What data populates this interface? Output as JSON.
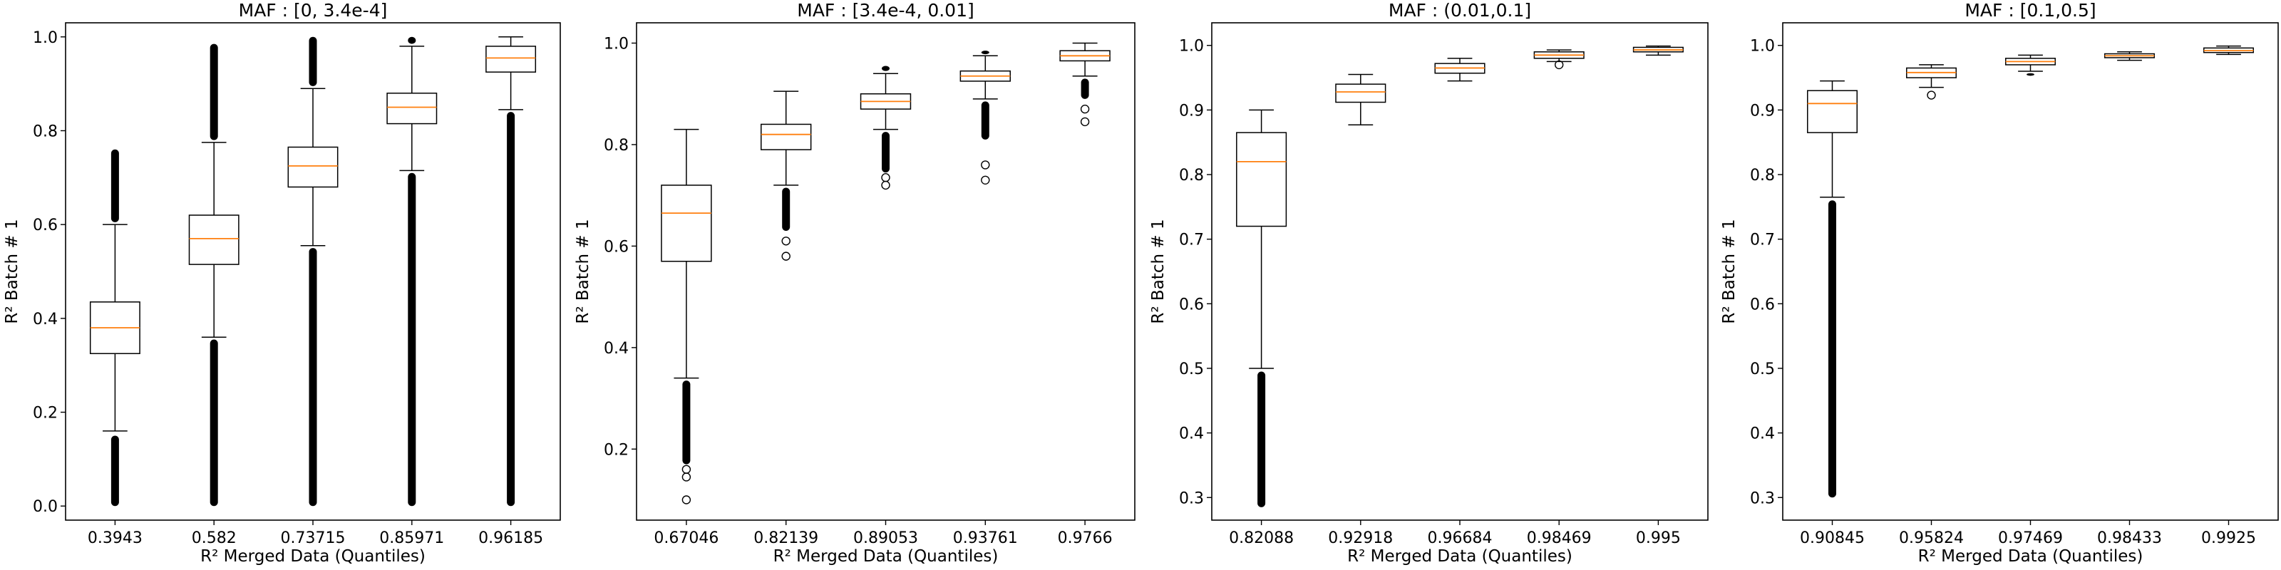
{
  "chart_data": [
    {
      "type": "box",
      "title": "MAF : [0, 3.4e-4]",
      "xlabel": "R² Merged Data (Quantiles)",
      "ylabel": "R² Batch # 1",
      "ylim": [
        -0.03,
        1.03
      ],
      "yticks": [
        0.0,
        0.2,
        0.4,
        0.6,
        0.8,
        1.0
      ],
      "ytick_labels": [
        "0.0",
        "0.2",
        "0.4",
        "0.6",
        "0.8",
        "1.0"
      ],
      "categories": [
        "0.3943",
        "0.582",
        "0.73715",
        "0.85971",
        "0.96185"
      ],
      "boxes": [
        {
          "whislo": 0.16,
          "q1": 0.325,
          "med": 0.38,
          "q3": 0.435,
          "whishi": 0.6,
          "fliers_low": [
            0.0,
            0.15
          ],
          "fliers_high": [
            0.605,
            0.76
          ]
        },
        {
          "whislo": 0.36,
          "q1": 0.515,
          "med": 0.57,
          "q3": 0.62,
          "whishi": 0.775,
          "fliers_low": [
            0.0,
            0.355
          ],
          "fliers_high": [
            0.78,
            0.985
          ]
        },
        {
          "whislo": 0.555,
          "q1": 0.68,
          "med": 0.725,
          "q3": 0.765,
          "whishi": 0.89,
          "fliers_low": [
            0.0,
            0.55
          ],
          "fliers_high": [
            0.895,
            1.0
          ]
        },
        {
          "whislo": 0.715,
          "q1": 0.815,
          "med": 0.85,
          "q3": 0.88,
          "whishi": 0.98,
          "fliers_low": [
            0.0,
            0.71
          ],
          "fliers_high": [
            0.985,
            1.0
          ]
        },
        {
          "whislo": 0.845,
          "q1": 0.925,
          "med": 0.955,
          "q3": 0.98,
          "whishi": 1.0,
          "fliers_low": [
            0.0,
            0.84
          ],
          "fliers_high": []
        }
      ]
    },
    {
      "type": "box",
      "title": "MAF : [3.4e-4, 0.01]",
      "xlabel": "R² Merged Data (Quantiles)",
      "ylabel": "R² Batch # 1",
      "ylim": [
        0.06,
        1.04
      ],
      "yticks": [
        0.2,
        0.4,
        0.6,
        0.8,
        1.0
      ],
      "ytick_labels": [
        "0.2",
        "0.4",
        "0.6",
        "0.8",
        "1.0"
      ],
      "categories": [
        "0.67046",
        "0.82139",
        "0.89053",
        "0.93761",
        "0.9766"
      ],
      "boxes": [
        {
          "whislo": 0.34,
          "q1": 0.57,
          "med": 0.665,
          "q3": 0.72,
          "whishi": 0.83,
          "fliers_low": [
            0.17,
            0.335,
            0.16,
            0.145,
            0.1
          ],
          "fliers_high": []
        },
        {
          "whislo": 0.72,
          "q1": 0.79,
          "med": 0.82,
          "q3": 0.84,
          "whishi": 0.905,
          "fliers_low": [
            0.63,
            0.715,
            0.61,
            0.58
          ],
          "fliers_high": []
        },
        {
          "whislo": 0.83,
          "q1": 0.87,
          "med": 0.885,
          "q3": 0.9,
          "whishi": 0.94,
          "fliers_low": [
            0.745,
            0.825,
            0.735,
            0.72
          ],
          "fliers_high": [
            0.945,
            0.955
          ]
        },
        {
          "whislo": 0.89,
          "q1": 0.925,
          "med": 0.935,
          "q3": 0.945,
          "whishi": 0.975,
          "fliers_low": [
            0.81,
            0.885,
            0.76,
            0.73
          ],
          "fliers_high": [
            0.978,
            0.985
          ]
        },
        {
          "whislo": 0.935,
          "q1": 0.965,
          "med": 0.975,
          "q3": 0.985,
          "whishi": 1.0,
          "fliers_low": [
            0.89,
            0.93,
            0.87,
            0.845
          ],
          "fliers_high": []
        }
      ]
    },
    {
      "type": "box",
      "title": "MAF : (0.01,0.1]",
      "xlabel": "R² Merged Data (Quantiles)",
      "ylabel": "R² Batch # 1",
      "ylim": [
        0.265,
        1.035
      ],
      "yticks": [
        0.3,
        0.4,
        0.5,
        0.6,
        0.7,
        0.8,
        0.9,
        1.0
      ],
      "ytick_labels": [
        "0.3",
        "0.4",
        "0.5",
        "0.6",
        "0.7",
        "0.8",
        "0.9",
        "1.0"
      ],
      "categories": [
        "0.82088",
        "0.92918",
        "0.96684",
        "0.98469",
        "0.995"
      ],
      "boxes": [
        {
          "whislo": 0.5,
          "q1": 0.72,
          "med": 0.82,
          "q3": 0.865,
          "whishi": 0.9,
          "fliers_low": [
            0.285,
            0.495
          ],
          "fliers_high": []
        },
        {
          "whislo": 0.877,
          "q1": 0.912,
          "med": 0.928,
          "q3": 0.94,
          "whishi": 0.955,
          "fliers_low": [],
          "fliers_high": []
        },
        {
          "whislo": 0.945,
          "q1": 0.957,
          "med": 0.965,
          "q3": 0.972,
          "whishi": 0.98,
          "fliers_low": [],
          "fliers_high": []
        },
        {
          "whislo": 0.975,
          "q1": 0.98,
          "med": 0.985,
          "q3": 0.99,
          "whishi": 0.993,
          "fliers_low": [
            0.97
          ],
          "fliers_high": []
        },
        {
          "whislo": 0.985,
          "q1": 0.99,
          "med": 0.993,
          "q3": 0.997,
          "whishi": 0.999,
          "fliers_low": [],
          "fliers_high": []
        }
      ]
    },
    {
      "type": "box",
      "title": "MAF : [0.1,0.5]",
      "xlabel": "R² Merged Data (Quantiles)",
      "ylabel": "R² Batch # 1",
      "ylim": [
        0.265,
        1.035
      ],
      "yticks": [
        0.3,
        0.4,
        0.5,
        0.6,
        0.7,
        0.8,
        0.9,
        1.0
      ],
      "ytick_labels": [
        "0.3",
        "0.4",
        "0.5",
        "0.6",
        "0.7",
        "0.8",
        "0.9",
        "1.0"
      ],
      "categories": [
        "0.90845",
        "0.95824",
        "0.97469",
        "0.98433",
        "0.9925"
      ],
      "boxes": [
        {
          "whislo": 0.765,
          "q1": 0.865,
          "med": 0.91,
          "q3": 0.93,
          "whishi": 0.945,
          "fliers_low": [
            0.3,
            0.76
          ],
          "fliers_high": []
        },
        {
          "whislo": 0.935,
          "q1": 0.95,
          "med": 0.958,
          "q3": 0.965,
          "whishi": 0.97,
          "fliers_low": [
            0.923
          ],
          "fliers_high": []
        },
        {
          "whislo": 0.96,
          "q1": 0.97,
          "med": 0.975,
          "q3": 0.98,
          "whishi": 0.985,
          "fliers_low": [
            0.957,
            0.953
          ],
          "fliers_high": []
        },
        {
          "whislo": 0.977,
          "q1": 0.981,
          "med": 0.984,
          "q3": 0.987,
          "whishi": 0.99,
          "fliers_low": [],
          "fliers_high": []
        },
        {
          "whislo": 0.986,
          "q1": 0.989,
          "med": 0.992,
          "q3": 0.996,
          "whishi": 0.999,
          "fliers_low": [],
          "fliers_high": []
        }
      ]
    }
  ],
  "colors": {
    "median": "#ff7f0e",
    "box": "#000000",
    "flier": "#000000"
  }
}
